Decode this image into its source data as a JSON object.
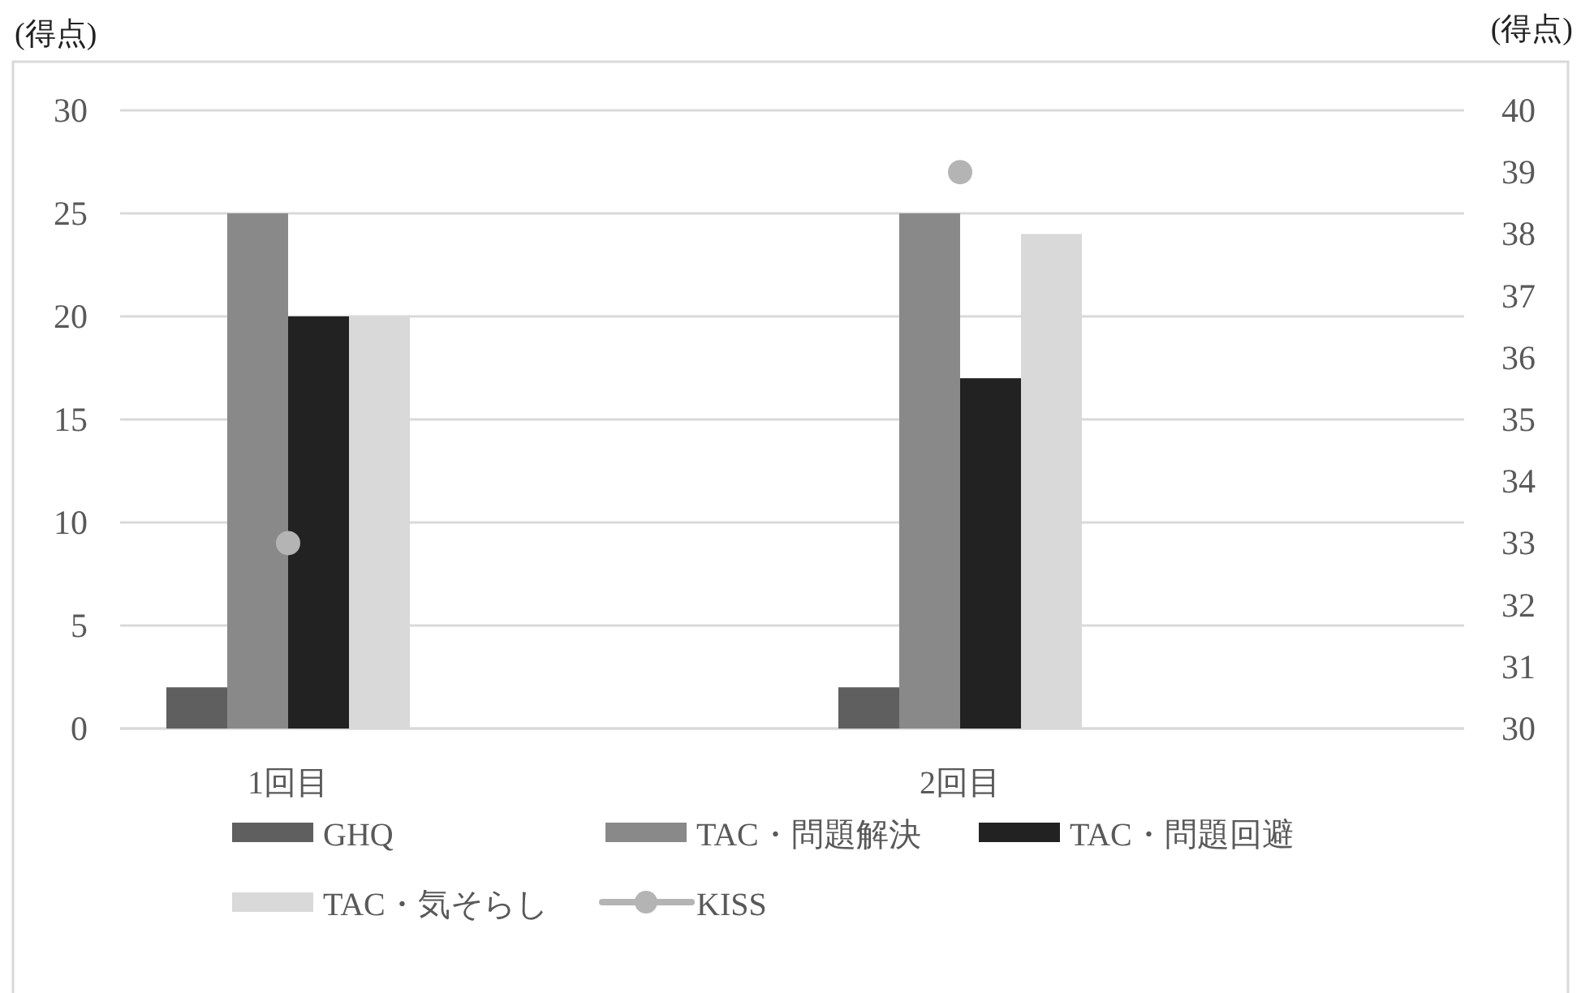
{
  "chart_data": {
    "type": "bar",
    "ylabel": "(得点)",
    "y2label": "(得点)",
    "categories": [
      "1回目",
      "2回目"
    ],
    "series": [
      {
        "name": "GHQ",
        "color": "#5f5f5f",
        "values": [
          2,
          2
        ]
      },
      {
        "name": "TAC・問題解決",
        "color": "#898989",
        "values": [
          25,
          25
        ]
      },
      {
        "name": "TAC・問題回避",
        "color": "#222222",
        "values": [
          20,
          17
        ]
      },
      {
        "name": "TAC・気そらし",
        "color": "#d9d9d9",
        "values": [
          20,
          24
        ]
      },
      {
        "name": "KISS",
        "type": "scatter",
        "axis": "y2",
        "marker": "circle",
        "color": "#b4b4b4",
        "values": [
          33,
          39
        ]
      }
    ],
    "ylim": [
      0,
      30
    ],
    "yticks": [
      0,
      5,
      10,
      15,
      20,
      25,
      30
    ],
    "y2lim": [
      30,
      40
    ],
    "y2ticks": [
      30,
      31,
      32,
      33,
      34,
      35,
      36,
      37,
      38,
      39,
      40
    ],
    "grid": "y",
    "legend": "bottom"
  }
}
